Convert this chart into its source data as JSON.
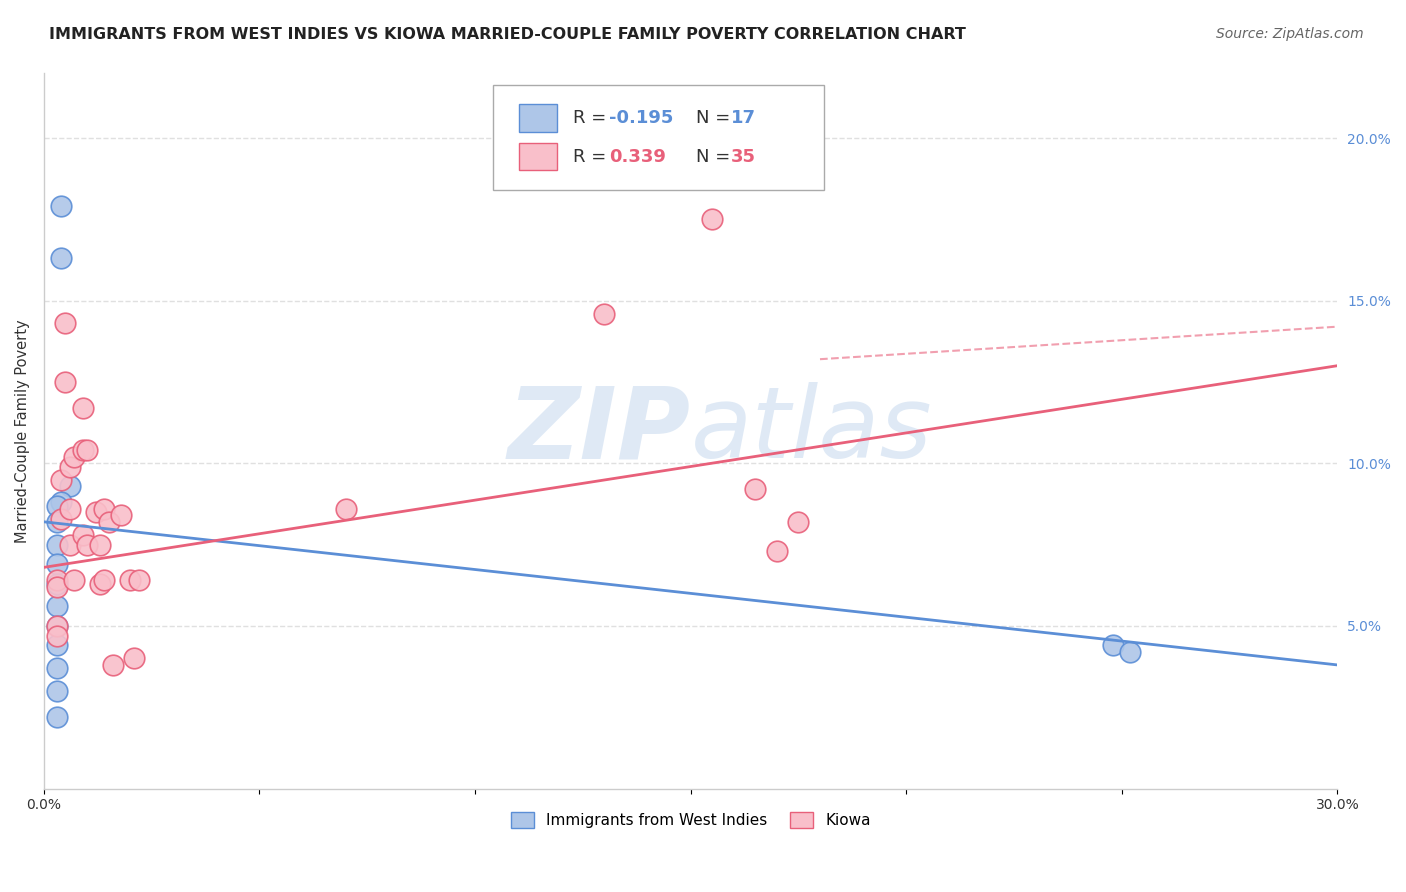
{
  "title": "IMMIGRANTS FROM WEST INDIES VS KIOWA MARRIED-COUPLE FAMILY POVERTY CORRELATION CHART",
  "source": "Source: ZipAtlas.com",
  "ylabel": "Married-Couple Family Poverty",
  "watermark": "ZIPatlas",
  "xlim": [
    0.0,
    0.3
  ],
  "ylim": [
    0.0,
    0.22
  ],
  "xticks": [
    0.0,
    0.05,
    0.1,
    0.15,
    0.2,
    0.25,
    0.3
  ],
  "xtick_labels": [
    "0.0%",
    "",
    "",
    "",
    "",
    "",
    "30.0%"
  ],
  "yticks_right": [
    0.05,
    0.1,
    0.15,
    0.2
  ],
  "ytick_labels_right": [
    "5.0%",
    "10.0%",
    "15.0%",
    "20.0%"
  ],
  "series1_color": "#aec6e8",
  "series2_color": "#f9bfca",
  "line1_color": "#5b8ed6",
  "line2_color": "#e8607a",
  "background_color": "#ffffff",
  "grid_color": "#e0e0e0",
  "series1_x": [
    0.004,
    0.004,
    0.006,
    0.004,
    0.003,
    0.003,
    0.003,
    0.003,
    0.003,
    0.003,
    0.003,
    0.003,
    0.003,
    0.003,
    0.003,
    0.248,
    0.252
  ],
  "series1_y": [
    0.179,
    0.163,
    0.093,
    0.088,
    0.087,
    0.082,
    0.075,
    0.069,
    0.063,
    0.056,
    0.05,
    0.044,
    0.037,
    0.03,
    0.022,
    0.044,
    0.042
  ],
  "series2_x": [
    0.003,
    0.003,
    0.003,
    0.003,
    0.004,
    0.004,
    0.005,
    0.005,
    0.006,
    0.006,
    0.006,
    0.007,
    0.007,
    0.009,
    0.009,
    0.009,
    0.01,
    0.01,
    0.012,
    0.013,
    0.013,
    0.014,
    0.014,
    0.015,
    0.016,
    0.018,
    0.02,
    0.021,
    0.022,
    0.07,
    0.13,
    0.155,
    0.165,
    0.17,
    0.175
  ],
  "series2_y": [
    0.05,
    0.047,
    0.064,
    0.062,
    0.095,
    0.083,
    0.143,
    0.125,
    0.099,
    0.086,
    0.075,
    0.102,
    0.064,
    0.117,
    0.104,
    0.078,
    0.104,
    0.075,
    0.085,
    0.075,
    0.063,
    0.086,
    0.064,
    0.082,
    0.038,
    0.084,
    0.064,
    0.04,
    0.064,
    0.086,
    0.146,
    0.175,
    0.092,
    0.073,
    0.082
  ],
  "line1_x_start": 0.0,
  "line1_x_end": 0.3,
  "line1_y_start": 0.082,
  "line1_y_end": 0.038,
  "line2_x_start": 0.0,
  "line2_x_end": 0.3,
  "line2_y_start": 0.068,
  "line2_y_end": 0.13,
  "line2_extend_x_end": 0.3,
  "line2_extend_y_end": 0.142,
  "title_fontsize": 11.5,
  "axis_label_fontsize": 10.5,
  "tick_fontsize": 10,
  "legend_fontsize": 13,
  "source_fontsize": 10
}
